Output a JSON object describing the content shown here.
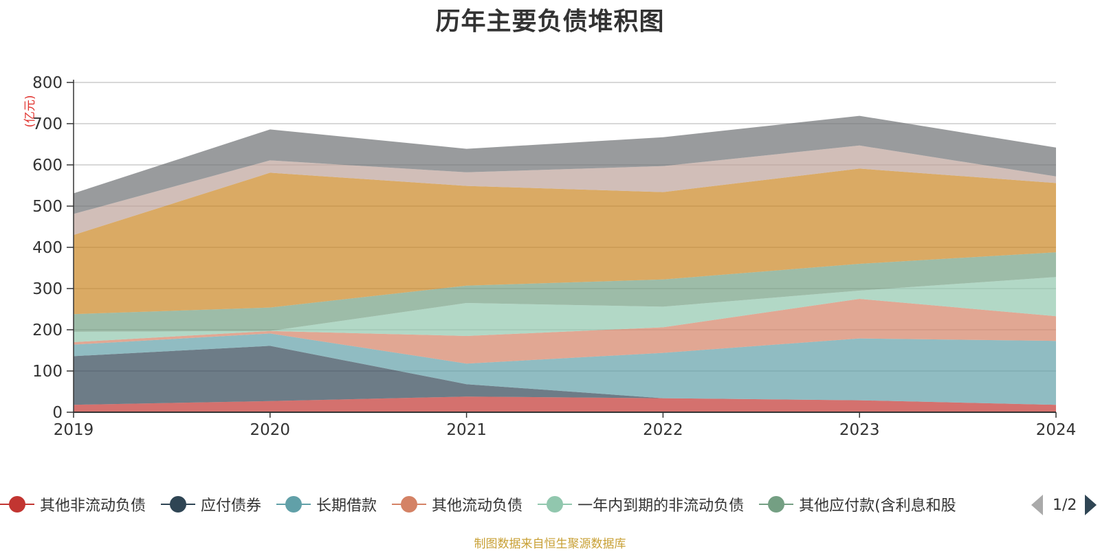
{
  "chart_data": {
    "type": "area",
    "stacked": true,
    "title": "历年主要负债堆积图",
    "unit_label": "(亿元)",
    "categories": [
      "2019",
      "2020",
      "2021",
      "2022",
      "2023",
      "2024"
    ],
    "ylim": [
      0,
      800
    ],
    "yticks": [
      0,
      100,
      200,
      300,
      400,
      500,
      600,
      700,
      800
    ],
    "grid": true,
    "legend_position": "bottom",
    "series": [
      {
        "name": "其他非流动负债",
        "color": "#c23531",
        "values": [
          18,
          27,
          38,
          34,
          29,
          18
        ]
      },
      {
        "name": "应付债券",
        "color": "#2f4554",
        "values": [
          118,
          134,
          30,
          0,
          0,
          0
        ]
      },
      {
        "name": "长期借款",
        "color": "#61a0a8",
        "values": [
          28,
          30,
          50,
          110,
          150,
          155
        ]
      },
      {
        "name": "其他流动负债",
        "color": "#d48265",
        "values": [
          6,
          6,
          67,
          62,
          96,
          60
        ]
      },
      {
        "name": "一年内到期的非流动负债",
        "color": "#91c7ae",
        "values": [
          25,
          0,
          80,
          50,
          20,
          95
        ]
      },
      {
        "name": "其他应付款(含利息和股",
        "color": "#749f83",
        "values": [
          43,
          57,
          42,
          66,
          65,
          60
        ]
      },
      {
        "name": "",
        "color": "#ca8622",
        "values": [
          192,
          327,
          242,
          212,
          231,
          168
        ]
      },
      {
        "name": "",
        "color": "#bda29a",
        "values": [
          51,
          30,
          33,
          63,
          56,
          16
        ]
      },
      {
        "name": "",
        "color": "#6e7074",
        "values": [
          50,
          75,
          57,
          70,
          72,
          70
        ]
      }
    ]
  },
  "legend": {
    "items": [
      {
        "label": "其他非流动负债",
        "color": "#c23531"
      },
      {
        "label": "应付债券",
        "color": "#2f4554"
      },
      {
        "label": "长期借款",
        "color": "#61a0a8"
      },
      {
        "label": "其他流动负债",
        "color": "#d48265"
      },
      {
        "label": "一年内到期的非流动负债",
        "color": "#91c7ae"
      },
      {
        "label": "其他应付款(含利息和股",
        "color": "#749f83"
      }
    ],
    "page_indicator": "1/2"
  },
  "footer": {
    "source": "制图数据来自恒生聚源数据库"
  },
  "colors": {
    "axis": "#333333",
    "grid": "#cccccc",
    "unit_label": "#e0312c",
    "source": "#c8a035"
  }
}
